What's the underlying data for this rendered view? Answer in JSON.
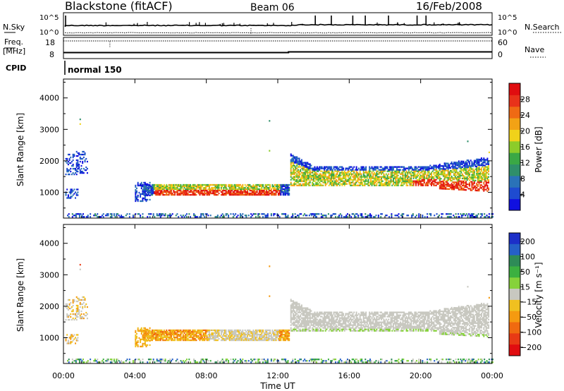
{
  "header": {
    "station": "Blackstone (fitACF)",
    "beam": "Beam 06",
    "date": "16/Feb/2008"
  },
  "chart_data": [
    {
      "type": "line",
      "panel": "noise",
      "left_label": "N.Sky",
      "left_ticks": [
        "10^5",
        "10^0"
      ],
      "right_label": "N.Search",
      "right_ticks": [
        "10^5",
        "10^0"
      ],
      "description_series": [
        "N.Sky (solid)",
        "N.Search (dotted)"
      ]
    },
    {
      "type": "line",
      "panel": "frequency",
      "left_label_top": "Freq.",
      "left_label_bottom": "[MHz]",
      "left_ticks": [
        18,
        8
      ],
      "right_label": "Nave",
      "right_ticks": [
        60,
        0
      ]
    },
    {
      "type": "table",
      "panel": "cpid",
      "label": "CPID",
      "value": "normal 150"
    },
    {
      "type": "heatmap",
      "panel": "power",
      "ylabel": "Slant Range [km]",
      "ylim": [
        180,
        4600
      ],
      "yticks": [
        1000,
        2000,
        3000,
        4000
      ],
      "colorbar_label": "Power [dB]",
      "colorbar_ticks": [
        "4",
        "8",
        "12",
        "16",
        "20",
        "24",
        "28"
      ],
      "colorbar_colors": [
        "#1010e0",
        "#1e4bd0",
        "#2a72b8",
        "#2f8f6a",
        "#3aa845",
        "#8ccc2a",
        "#f0d21a",
        "#f2a215",
        "#ef6a14",
        "#e8321a",
        "#e00d10"
      ],
      "colorbar_range": [
        0,
        32
      ]
    },
    {
      "type": "heatmap",
      "panel": "velocity",
      "ylabel": "Slant Range [km]",
      "ylim": [
        180,
        4600
      ],
      "yticks": [
        1000,
        2000,
        3000,
        4000
      ],
      "colorbar_label": "Velocity [m s⁻¹]",
      "colorbar_ticks": [
        "200",
        "100",
        "50",
        "15",
        "−15",
        "−50",
        "−100",
        "−200"
      ],
      "colorbar_colors": [
        "#1c2fc8",
        "#2560c8",
        "#2e8b57",
        "#3cb040",
        "#86d23a",
        "#c8c8c0",
        "#f0c020",
        "#f59a10",
        "#f06a10",
        "#e83a15",
        "#e00d10"
      ],
      "xlabel": "Time UT",
      "xticks": [
        "00:00",
        "04:00",
        "08:00",
        "12:00",
        "16:00",
        "20:00",
        "00:00"
      ]
    }
  ]
}
